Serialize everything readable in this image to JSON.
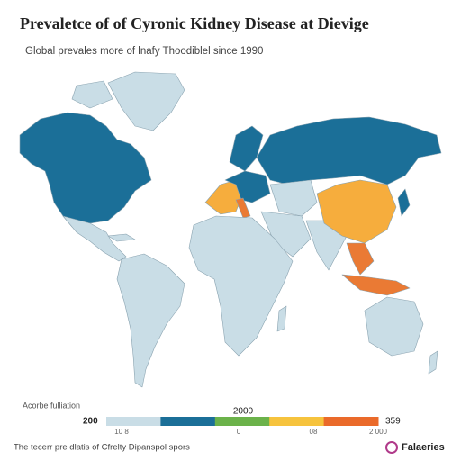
{
  "header": {
    "title": "Prevaletce of of Cyronic Kidney Disease at Dievige",
    "subtitle": "Global prevales more of lnafy Thoodiblel since 1990"
  },
  "legend": {
    "label": "Acorbe fulliation",
    "min_label": 200,
    "mid_label": 2000,
    "max_label": 359,
    "ticks": [
      "10 8",
      "0",
      "08",
      "2 000"
    ],
    "colors": [
      "#c9dde6",
      "#1b6f98",
      "#6bb24a",
      "#f6c33d",
      "#ea6a2a"
    ]
  },
  "footer": {
    "note": "The tecerr pre dlatis of Cfrelty Dipanspol spors",
    "brand": "Falaeries"
  }
}
